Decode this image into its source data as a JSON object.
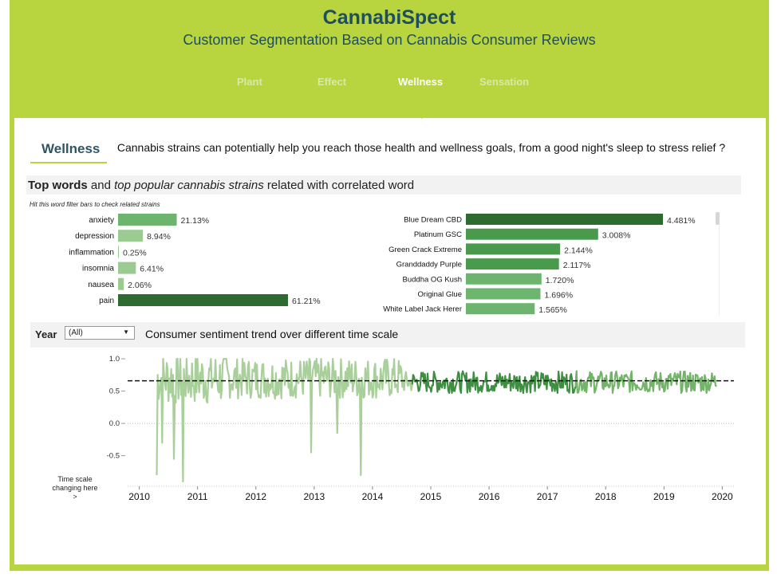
{
  "header": {
    "title": "CannabiSpect",
    "subtitle": "Customer Segmentation Based on Cannabis Consumer Reviews",
    "tabs": [
      {
        "label": "Plant",
        "active": false
      },
      {
        "label": "Effect",
        "active": false
      },
      {
        "label": "Wellness",
        "active": true
      },
      {
        "label": "Sensation",
        "active": false
      }
    ]
  },
  "section": {
    "label": "Wellness",
    "intro": "Cannabis strains can potentially help you reach those health and wellness goals, from a good night's sleep to stress relief ?"
  },
  "topwords": {
    "bold": "Top words",
    "and": " and ",
    "italic": "top popular cannabis strains",
    "rest": " related with correlated word",
    "hint": "Hit this word filter bars to check related strains"
  },
  "year_filter": {
    "label": "Year",
    "value": "(All)",
    "trend_title": "Consumer sentiment trend over different time scale",
    "time_scale_note": [
      "Time scale",
      "changing here",
      ">"
    ]
  },
  "colors": {
    "brand": "#b8d43e",
    "title": "#1f4e5c",
    "bar_dark": "#2e6b30",
    "bar_mid": "#4a9a4e",
    "bar_light": "#6db56f",
    "bar_pale": "#9ccb92",
    "line_early": "#a9cf9b",
    "line_mid": "#3f8f42",
    "line_late": "#74b36a"
  },
  "chart_data": [
    {
      "type": "bar",
      "orientation": "horizontal",
      "categories": [
        "anxiety",
        "depression",
        "inflammation",
        "insomnia",
        "nausea",
        "pain"
      ],
      "values": [
        21.13,
        8.94,
        0.25,
        6.41,
        2.06,
        61.21
      ],
      "value_labels": [
        "21.13%",
        "8.94%",
        "0.25%",
        "6.41%",
        "2.06%",
        "61.21%"
      ],
      "selected": "pain"
    },
    {
      "type": "bar",
      "orientation": "horizontal",
      "categories": [
        "Blue Dream CBD",
        "Platinum GSC",
        "Green Crack Extreme",
        "Granddaddy Purple",
        "Buddha OG Kush",
        "Original Glue",
        "White Label Jack Herer"
      ],
      "values": [
        4.481,
        3.008,
        2.144,
        2.117,
        1.72,
        1.696,
        1.565
      ],
      "value_labels": [
        "4.481%",
        "3.008%",
        "2.144%",
        "2.117%",
        "1.720%",
        "1.696%",
        "1.565%"
      ]
    },
    {
      "type": "line",
      "x_ticks": [
        "2010",
        "2011",
        "2012",
        "2013",
        "2014",
        "2015",
        "2016",
        "2017",
        "2018",
        "2019",
        "2020"
      ],
      "y_ticks": [
        "1.0",
        "0.5",
        "0.0",
        "-0.5"
      ],
      "ylim": [
        -0.9,
        1.05
      ],
      "reference_line": 0.66,
      "grid": "zero-line only",
      "series_segments": [
        {
          "period": "2010-2014.7",
          "color": "light"
        },
        {
          "period": "2014.7-2017.5",
          "color": "dark"
        },
        {
          "period": "2017.5-2019.9",
          "color": "mid-light"
        }
      ],
      "notable_lows": [
        {
          "x": 2010.3,
          "y": -0.8
        },
        {
          "x": 2010.4,
          "y": -0.3
        },
        {
          "x": 2010.6,
          "y": -0.55
        },
        {
          "x": 2010.75,
          "y": -0.9
        },
        {
          "x": 2012.95,
          "y": -0.45
        },
        {
          "x": 2013.4,
          "y": -0.15
        },
        {
          "x": 2013.8,
          "y": -0.8
        }
      ]
    }
  ]
}
